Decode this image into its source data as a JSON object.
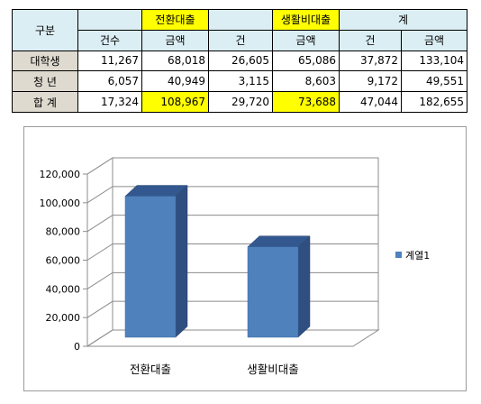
{
  "table": {
    "header_gubun": "구분",
    "header_groups": [
      "전환대출",
      "생활비대출",
      "계"
    ],
    "sub_headers": [
      "건수",
      "금액",
      "건",
      "금액",
      "건",
      "금액"
    ],
    "rows": [
      {
        "label": "대학생",
        "values": [
          "11,267",
          "68,018",
          "26,605",
          "65,086",
          "37,872",
          "133,104"
        ]
      },
      {
        "label": "청 년",
        "values": [
          "6,057",
          "40,949",
          "3,115",
          "8,603",
          "9,172",
          "49,551"
        ]
      },
      {
        "label": "합 계",
        "values": [
          "17,324",
          "108,967",
          "29,720",
          "73,688",
          "47,044",
          "182,655"
        ]
      }
    ]
  },
  "chart_data": {
    "type": "bar",
    "categories": [
      "전환대출",
      "생활비대출"
    ],
    "series": [
      {
        "name": "계열1",
        "values": [
          108967,
          73688
        ]
      }
    ],
    "ylim": [
      0,
      120000
    ],
    "yticks": [
      0,
      20000,
      40000,
      60000,
      80000,
      100000,
      120000
    ],
    "ytick_labels": [
      "0",
      "20,000",
      "40,000",
      "60,000",
      "80,000",
      "100,000",
      "120,000"
    ],
    "legend_position": "right",
    "three_d": true,
    "bar_color": "#4f81bd",
    "grid": true
  }
}
